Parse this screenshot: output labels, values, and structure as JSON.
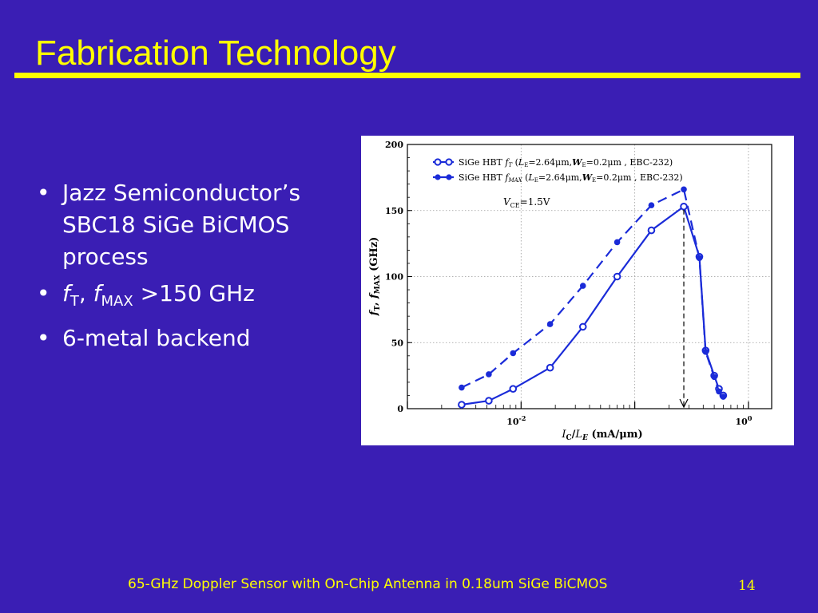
{
  "slide": {
    "title": "Fabrication Technology",
    "footer": "65-GHz Doppler Sensor with On-Chip Antenna in 0.18um SiGe BiCMOS",
    "page_number": "14",
    "colors": {
      "background": "#3a1eb4",
      "title": "#ffff00",
      "text": "#ffffff",
      "series": "#1a2bd8"
    }
  },
  "bullets": [
    {
      "bullet": "•",
      "text": "Jazz Semiconductor’s SBC18 SiGe BiCMOS process"
    },
    {
      "bullet": "•",
      "f1": "f",
      "sub1": "T",
      "comma": ", ",
      "f2": "f",
      "sub2": "MAX",
      "rest": " >150 GHz"
    },
    {
      "bullet": "•",
      "text": "6-metal backend"
    }
  ],
  "chart_data": {
    "type": "line",
    "x_scale": "log",
    "xlim": [
      0.001,
      1.6
    ],
    "ylim": [
      0,
      200
    ],
    "y_ticks": [
      "0",
      "50",
      "100",
      "150",
      "200"
    ],
    "x_ticks": [
      {
        "base": "10",
        "exp": "-2",
        "value": 0.01
      },
      {
        "base": "10",
        "exp": "0",
        "value": 1
      }
    ],
    "xlabel": {
      "i": "I",
      "c": "C",
      "slash": "/",
      "l": "L",
      "e": "E",
      "units": " (mA/μm)"
    },
    "ylabel": {
      "f1": "f",
      "t": "T",
      "comma": ", ",
      "f2": "f",
      "max": "MAX",
      "units": " (GHz)"
    },
    "legend_position": "top-left",
    "annotation": {
      "v": "V",
      "sub": "CE",
      "text": "=1.5V"
    },
    "grid": true,
    "series": [
      {
        "name": "SiGe HBT fT (LE=2.64μm,WE=0.2μm , EBC-232)",
        "legend": {
          "pre": "SiGe HBT ",
          "f": "f",
          "sub": "T",
          "mid1": " (",
          "l": "L",
          "lsub": "E",
          "mid2": "=2.64μm,",
          "w": "W",
          "wsub": "E",
          "post": "=0.2μm , EBC-232)"
        },
        "marker": "open-circle",
        "dash": false,
        "x": [
          0.003,
          0.0052,
          0.0085,
          0.018,
          0.035,
          0.07,
          0.14,
          0.27,
          0.37,
          0.42,
          0.5,
          0.55,
          0.6
        ],
        "y": [
          3,
          6,
          15,
          31,
          62,
          100,
          135,
          153,
          115,
          44,
          25,
          15,
          10
        ]
      },
      {
        "name": "SiGe HBT fMAX (LE=2.64μm,WE=0.2μm , EBC-232)",
        "legend": {
          "pre": "SiGe HBT ",
          "f": "f",
          "sub": "MAX",
          "mid1": " (",
          "l": "L",
          "lsub": "E",
          "mid2": "=2.64μm,",
          "w": "W",
          "wsub": "E",
          "post": "=0.2μm , EBC-232)"
        },
        "marker": "filled-circle",
        "dash": true,
        "x": [
          0.003,
          0.0052,
          0.0085,
          0.018,
          0.035,
          0.07,
          0.14,
          0.27,
          0.37,
          0.42,
          0.5,
          0.55,
          0.6
        ],
        "y": [
          16,
          26,
          42,
          64,
          93,
          126,
          154,
          166,
          114,
          43,
          24,
          13,
          9
        ]
      }
    ],
    "marker_line_x": 0.27
  }
}
